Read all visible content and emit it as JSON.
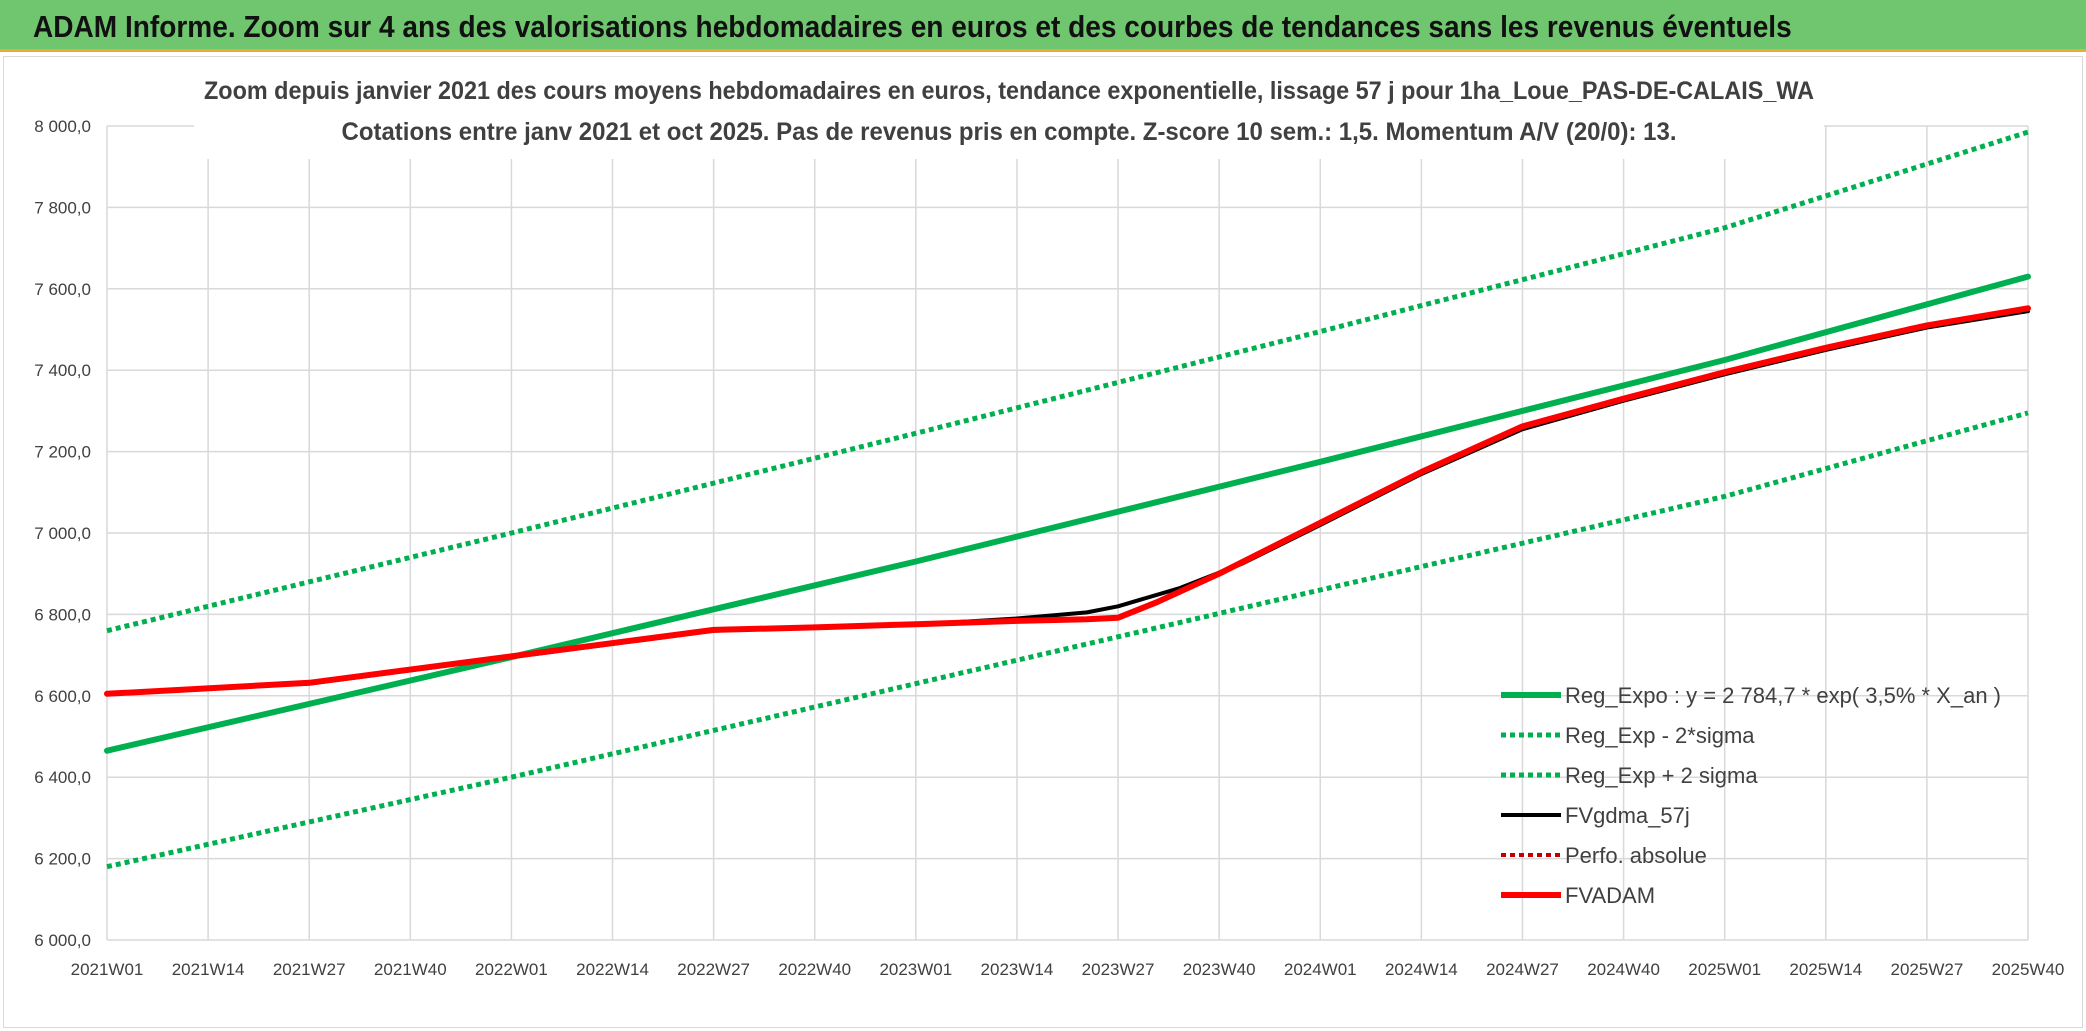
{
  "header": {
    "title": "ADAM Informe. Zoom sur 4 ans des valorisations hebdomadaires en euros et des courbes de tendances sans les revenus éventuels"
  },
  "colors": {
    "banner": "#70c66f",
    "banner_border": "#e0b13a",
    "trend_green": "#00b050",
    "fvadam_red": "#ff0000",
    "fvgdma_black": "#000000",
    "perfo_red": "#c00000",
    "grid": "#d9d9d9",
    "text": "#404040"
  },
  "chart_data": {
    "type": "line",
    "title_lines": [
      "Zoom depuis janvier 2021 des cours moyens hebdomadaires en euros, tendance exponentielle, lissage 57 j pour 1ha_Loue_PAS-DE-CALAIS_WA",
      "Cotations entre janv 2021 et oct 2025. Pas de revenus pris en compte. Z-score 10 sem.: 1,5. Momentum A/V (20/0): 13."
    ],
    "xlabel": "",
    "ylabel": "",
    "x_start_week": 0,
    "x_end_week": 247,
    "x_ticks": [
      {
        "label": "2021W01",
        "week": 0
      },
      {
        "label": "2021W14",
        "week": 13
      },
      {
        "label": "2021W27",
        "week": 26
      },
      {
        "label": "2021W40",
        "week": 39
      },
      {
        "label": "2022W01",
        "week": 52
      },
      {
        "label": "2022W14",
        "week": 65
      },
      {
        "label": "2022W27",
        "week": 78
      },
      {
        "label": "2022W40",
        "week": 91
      },
      {
        "label": "2023W01",
        "week": 104
      },
      {
        "label": "2023W14",
        "week": 117
      },
      {
        "label": "2023W27",
        "week": 130
      },
      {
        "label": "2023W40",
        "week": 143
      },
      {
        "label": "2024W01",
        "week": 156
      },
      {
        "label": "2024W14",
        "week": 169
      },
      {
        "label": "2024W27",
        "week": 182
      },
      {
        "label": "2024W40",
        "week": 195
      },
      {
        "label": "2025W01",
        "week": 208
      },
      {
        "label": "2025W14",
        "week": 221
      },
      {
        "label": "2025W27",
        "week": 234
      },
      {
        "label": "2025W40",
        "week": 247
      }
    ],
    "ylim": [
      6000,
      8000
    ],
    "y_ticks": [
      {
        "value": 6000,
        "label": "6 000,0"
      },
      {
        "value": 6200,
        "label": "6 200,0"
      },
      {
        "value": 6400,
        "label": "6 400,0"
      },
      {
        "value": 6600,
        "label": "6 600,0"
      },
      {
        "value": 6800,
        "label": "6 800,0"
      },
      {
        "value": 7000,
        "label": "7 000,0"
      },
      {
        "value": 7200,
        "label": "7 200,0"
      },
      {
        "value": 7400,
        "label": "7 400,0"
      },
      {
        "value": 7600,
        "label": "7 600,0"
      },
      {
        "value": 7800,
        "label": "7 800,0"
      },
      {
        "value": 8000,
        "label": "8 000,0"
      }
    ],
    "series": [
      {
        "name": "Reg_Expo : y = 2 784,7 * exp( 3,5% *  X_an )",
        "color": "#00b050",
        "style": "solid",
        "width": 6,
        "points": [
          [
            0,
            6465
          ],
          [
            52,
            6695
          ],
          [
            104,
            6930
          ],
          [
            156,
            7175
          ],
          [
            208,
            7425
          ],
          [
            247,
            7630
          ]
        ]
      },
      {
        "name": "Reg_Exp - 2*sigma",
        "color": "#00b050",
        "style": "dotted",
        "width": 5,
        "points": [
          [
            0,
            6180
          ],
          [
            52,
            6400
          ],
          [
            104,
            6630
          ],
          [
            156,
            6860
          ],
          [
            208,
            7090
          ],
          [
            247,
            7295
          ]
        ]
      },
      {
        "name": "Reg_Exp + 2 sigma",
        "color": "#00b050",
        "style": "dotted",
        "width": 5,
        "points": [
          [
            0,
            6760
          ],
          [
            52,
            7000
          ],
          [
            104,
            7245
          ],
          [
            156,
            7495
          ],
          [
            208,
            7750
          ],
          [
            247,
            7985
          ]
        ]
      },
      {
        "name": "FVgdma_57j",
        "color": "#000000",
        "style": "solid",
        "width": 4,
        "points": [
          [
            0,
            6605
          ],
          [
            26,
            6630
          ],
          [
            52,
            6695
          ],
          [
            78,
            6760
          ],
          [
            91,
            6768
          ],
          [
            104,
            6775
          ],
          [
            117,
            6790
          ],
          [
            126,
            6805
          ],
          [
            130,
            6820
          ],
          [
            138,
            6865
          ],
          [
            146,
            6925
          ],
          [
            156,
            7020
          ],
          [
            169,
            7145
          ],
          [
            182,
            7255
          ],
          [
            195,
            7325
          ],
          [
            208,
            7390
          ],
          [
            221,
            7450
          ],
          [
            234,
            7505
          ],
          [
            247,
            7545
          ]
        ]
      },
      {
        "name": "Perfo. absolue",
        "color": "#c00000",
        "style": "dotted",
        "width": 3,
        "points": []
      },
      {
        "name": "FVADAM",
        "color": "#ff0000",
        "style": "solid",
        "width": 6,
        "points": [
          [
            0,
            6605
          ],
          [
            26,
            6632
          ],
          [
            52,
            6697
          ],
          [
            78,
            6762
          ],
          [
            91,
            6768
          ],
          [
            104,
            6776
          ],
          [
            117,
            6784
          ],
          [
            126,
            6788
          ],
          [
            130,
            6792
          ],
          [
            135,
            6830
          ],
          [
            143,
            6900
          ],
          [
            156,
            7025
          ],
          [
            169,
            7150
          ],
          [
            182,
            7262
          ],
          [
            195,
            7330
          ],
          [
            208,
            7395
          ],
          [
            221,
            7455
          ],
          [
            234,
            7510
          ],
          [
            247,
            7552
          ]
        ]
      }
    ]
  }
}
